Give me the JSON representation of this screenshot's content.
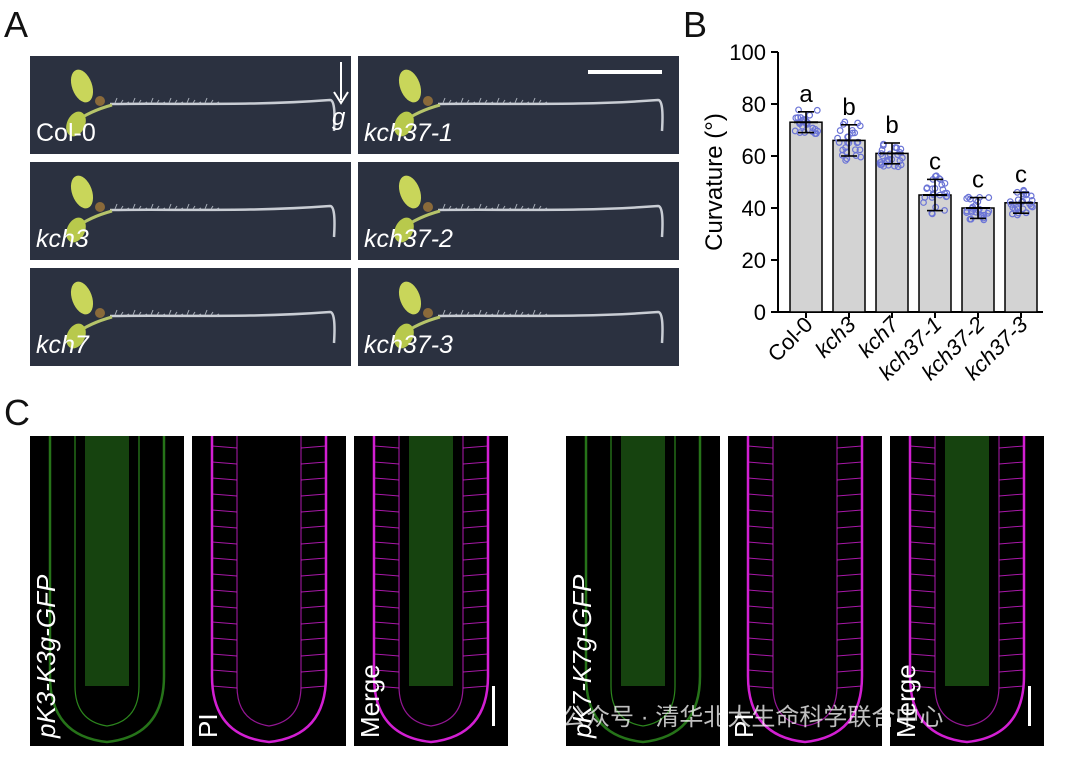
{
  "panels": {
    "a": {
      "letter": "A",
      "gravity_label": "g",
      "seedlings": [
        {
          "label": "Col-0",
          "italic": false
        },
        {
          "label": "kch37-1",
          "italic": true
        },
        {
          "label": "kch3",
          "italic": true
        },
        {
          "label": "kch37-2",
          "italic": true
        },
        {
          "label": "kch7",
          "italic": true
        },
        {
          "label": "kch37-3",
          "italic": true
        }
      ]
    },
    "b": {
      "letter": "B"
    },
    "c": {
      "letter": "C",
      "images": [
        {
          "label": "pK3-K3g-GFP",
          "channel": "green"
        },
        {
          "label": "PI",
          "channel": "magenta"
        },
        {
          "label": "Merge",
          "channel": "merge"
        },
        {
          "label": "pK7-K7g-GFP",
          "channel": "green"
        },
        {
          "label": "PI",
          "channel": "magenta"
        },
        {
          "label": "Merge",
          "channel": "merge"
        }
      ]
    }
  },
  "chart_data": {
    "type": "bar",
    "categories": [
      "Col-0",
      "kch3",
      "kch7",
      "kch37-1",
      "kch37-2",
      "kch37-3"
    ],
    "values": [
      73,
      66,
      61,
      45,
      40,
      42
    ],
    "errors": [
      4,
      6,
      4,
      6,
      4,
      4
    ],
    "significance": [
      "a",
      "b",
      "b",
      "c",
      "c",
      "c"
    ],
    "ylabel": "Curvature (°)",
    "ylim": [
      0,
      100
    ],
    "yticks": [
      0,
      20,
      40,
      60,
      80,
      100
    ],
    "bar_color": "#d3d3d3",
    "point_color": "#6b74d6"
  },
  "watermark": {
    "text": "公众号 · 清华北大生命科学联合中心"
  },
  "colors": {
    "seedling_bg": "#2b3140",
    "gfp": "#3fbf2a",
    "pi": "#d21fd2"
  }
}
